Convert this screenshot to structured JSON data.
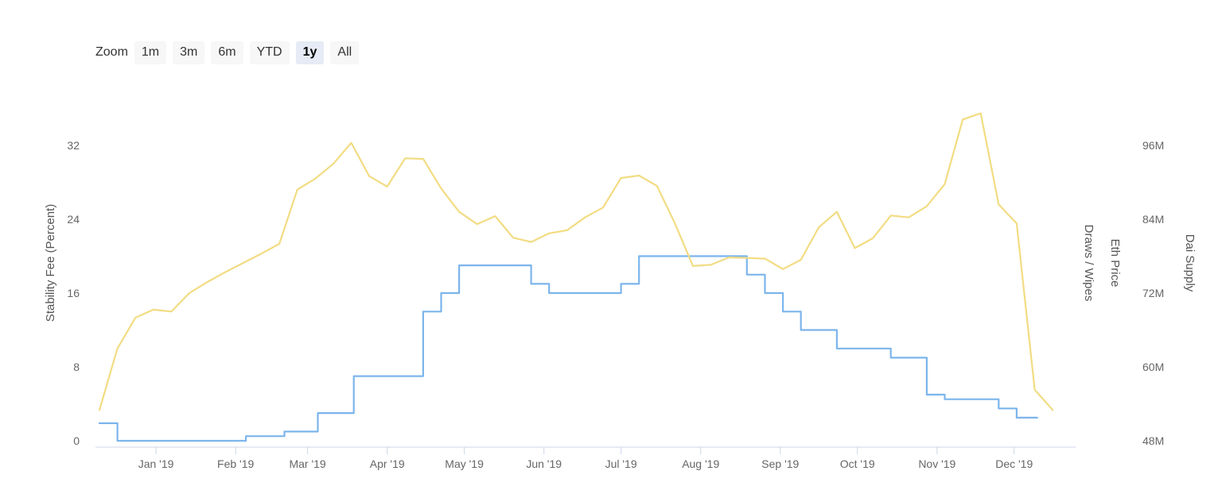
{
  "zoom": {
    "label": "Zoom",
    "buttons": [
      "1m",
      "3m",
      "6m",
      "YTD",
      "1y",
      "All"
    ],
    "active": "1y"
  },
  "chart_data": {
    "type": "line",
    "x_tick_labels": [
      "Jan '19",
      "Feb '19",
      "Mar '19",
      "Apr '19",
      "May '19",
      "Jun '19",
      "Jul '19",
      "Aug '19",
      "Sep '19",
      "Oct '19",
      "Nov '19",
      "Dec '19"
    ],
    "x_tick_dates": [
      "2019-01-01",
      "2019-02-01",
      "2019-03-01",
      "2019-04-01",
      "2019-05-01",
      "2019-06-01",
      "2019-07-01",
      "2019-08-01",
      "2019-09-01",
      "2019-10-01",
      "2019-11-01",
      "2019-12-01"
    ],
    "x_range": [
      "2018-12-10",
      "2019-12-24"
    ],
    "y_left": {
      "label": "Stability Fee (Percent)",
      "ticks": [
        "0",
        "8",
        "16",
        "24",
        "32"
      ],
      "range": [
        0,
        32
      ]
    },
    "y_right": {
      "labels": [
        "Draws / Wipes",
        "Eth Price",
        "Dai Supply"
      ],
      "ticks": [
        "48M",
        "60M",
        "72M",
        "84M",
        "96M"
      ],
      "range": [
        48,
        96
      ]
    },
    "series": [
      {
        "name": "Stability Fee",
        "color": "#7cb5ec",
        "step": true,
        "points": [
          [
            "2018-12-10",
            1.9
          ],
          [
            "2018-12-17",
            0.0
          ],
          [
            "2019-02-05",
            0.5
          ],
          [
            "2019-02-20",
            1.0
          ],
          [
            "2019-03-05",
            3.0
          ],
          [
            "2019-03-19",
            7.0
          ],
          [
            "2019-04-15",
            14.0
          ],
          [
            "2019-04-22",
            16.0
          ],
          [
            "2019-04-29",
            19.0
          ],
          [
            "2019-05-27",
            17.0
          ],
          [
            "2019-06-03",
            16.0
          ],
          [
            "2019-07-01",
            17.0
          ],
          [
            "2019-07-08",
            20.0
          ],
          [
            "2019-08-19",
            18.0
          ],
          [
            "2019-08-26",
            16.0
          ],
          [
            "2019-09-02",
            14.0
          ],
          [
            "2019-09-09",
            12.0
          ],
          [
            "2019-09-23",
            10.0
          ],
          [
            "2019-10-14",
            9.0
          ],
          [
            "2019-10-28",
            5.0
          ],
          [
            "2019-11-04",
            4.5
          ],
          [
            "2019-11-25",
            3.5
          ],
          [
            "2019-12-02",
            2.5
          ],
          [
            "2019-12-10",
            2.5
          ]
        ]
      },
      {
        "name": "Dai Supply",
        "color": "#f2dc83",
        "step": false,
        "points": [
          [
            "2018-12-10",
            53.0
          ],
          [
            "2018-12-17",
            63.0
          ],
          [
            "2018-12-24",
            68.0
          ],
          [
            "2018-12-31",
            69.3
          ],
          [
            "2019-01-07",
            69.0
          ],
          [
            "2019-01-14",
            72.0
          ],
          [
            "2019-01-21",
            73.8
          ],
          [
            "2019-01-28",
            75.4
          ],
          [
            "2019-02-04",
            76.9
          ],
          [
            "2019-02-11",
            78.4
          ],
          [
            "2019-02-18",
            80.0
          ],
          [
            "2019-02-25",
            88.8
          ],
          [
            "2019-03-04",
            90.6
          ],
          [
            "2019-03-11",
            93.0
          ],
          [
            "2019-03-18",
            96.4
          ],
          [
            "2019-03-25",
            91.0
          ],
          [
            "2019-04-01",
            89.3
          ],
          [
            "2019-04-08",
            93.9
          ],
          [
            "2019-04-15",
            93.8
          ],
          [
            "2019-04-22",
            89.0
          ],
          [
            "2019-04-29",
            85.2
          ],
          [
            "2019-05-06",
            83.2
          ],
          [
            "2019-05-13",
            84.5
          ],
          [
            "2019-05-20",
            81.0
          ],
          [
            "2019-05-27",
            80.3
          ],
          [
            "2019-06-03",
            81.7
          ],
          [
            "2019-06-10",
            82.2
          ],
          [
            "2019-06-17",
            84.3
          ],
          [
            "2019-06-24",
            85.9
          ],
          [
            "2019-07-01",
            90.7
          ],
          [
            "2019-07-08",
            91.1
          ],
          [
            "2019-07-15",
            89.4
          ],
          [
            "2019-07-22",
            83.3
          ],
          [
            "2019-07-29",
            76.4
          ],
          [
            "2019-08-05",
            76.6
          ],
          [
            "2019-08-12",
            77.8
          ],
          [
            "2019-08-19",
            77.7
          ],
          [
            "2019-08-26",
            77.6
          ],
          [
            "2019-09-02",
            75.9
          ],
          [
            "2019-09-09",
            77.4
          ],
          [
            "2019-09-16",
            82.7
          ],
          [
            "2019-09-23",
            85.2
          ],
          [
            "2019-09-30",
            79.3
          ],
          [
            "2019-10-07",
            80.9
          ],
          [
            "2019-10-14",
            84.6
          ],
          [
            "2019-10-21",
            84.3
          ],
          [
            "2019-10-28",
            86.1
          ],
          [
            "2019-11-04",
            89.7
          ],
          [
            "2019-11-11",
            100.2
          ],
          [
            "2019-11-18",
            101.2
          ],
          [
            "2019-11-25",
            86.4
          ],
          [
            "2019-12-02",
            83.3
          ],
          [
            "2019-12-09",
            56.3
          ],
          [
            "2019-12-16",
            53.0
          ]
        ]
      }
    ]
  }
}
